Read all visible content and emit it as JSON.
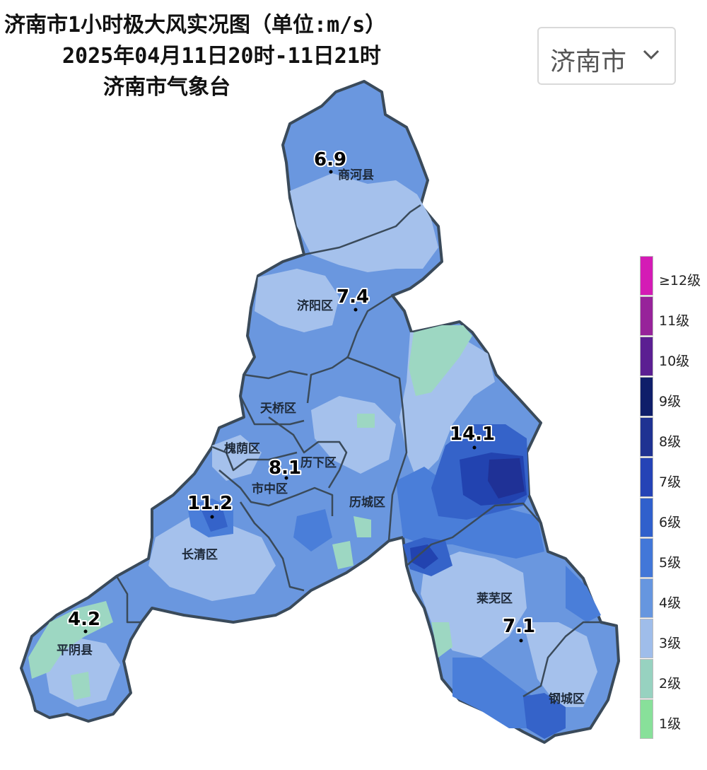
{
  "title": {
    "line1": "济南市1小时极大风实况图（单位:m/s）",
    "line2": "2025年04月11日20时-11日21时",
    "line3": "济南市气象台"
  },
  "region_selector": {
    "value": "济南市",
    "icon": "chevron-down-icon"
  },
  "districts": {
    "shanghe": "商河县",
    "jiyang": "济阳区",
    "tianqiao": "天桥区",
    "huaiyin": "槐荫区",
    "lixia": "历下区",
    "shizhong": "市中区",
    "licheng": "历城区",
    "changqing": "长清区",
    "pingyin": "平阴县",
    "laiwu": "莱芜区",
    "gangcheng": "钢城区"
  },
  "readings": {
    "shanghe": "6.9",
    "jiyang": "7.4",
    "zhangqiu": "14.1",
    "city": "8.1",
    "changqing": "11.2",
    "pingyin": "4.2",
    "laiwu": "7.1"
  },
  "legend": [
    {
      "label": "≥12级",
      "color": "#d41bb5"
    },
    {
      "label": "11级",
      "color": "#97239a"
    },
    {
      "label": "10级",
      "color": "#5b1f92"
    },
    {
      "label": "9级",
      "color": "#0f1e6a"
    },
    {
      "label": "8级",
      "color": "#1f3292"
    },
    {
      "label": "7级",
      "color": "#2543b6"
    },
    {
      "label": "6级",
      "color": "#3060cc"
    },
    {
      "label": "5级",
      "color": "#4277d8"
    },
    {
      "label": "4级",
      "color": "#6696df"
    },
    {
      "label": "3级",
      "color": "#9fbdea"
    },
    {
      "label": "2级",
      "color": "#97d2c0"
    },
    {
      "label": "1级",
      "color": "#88e09a"
    }
  ]
}
